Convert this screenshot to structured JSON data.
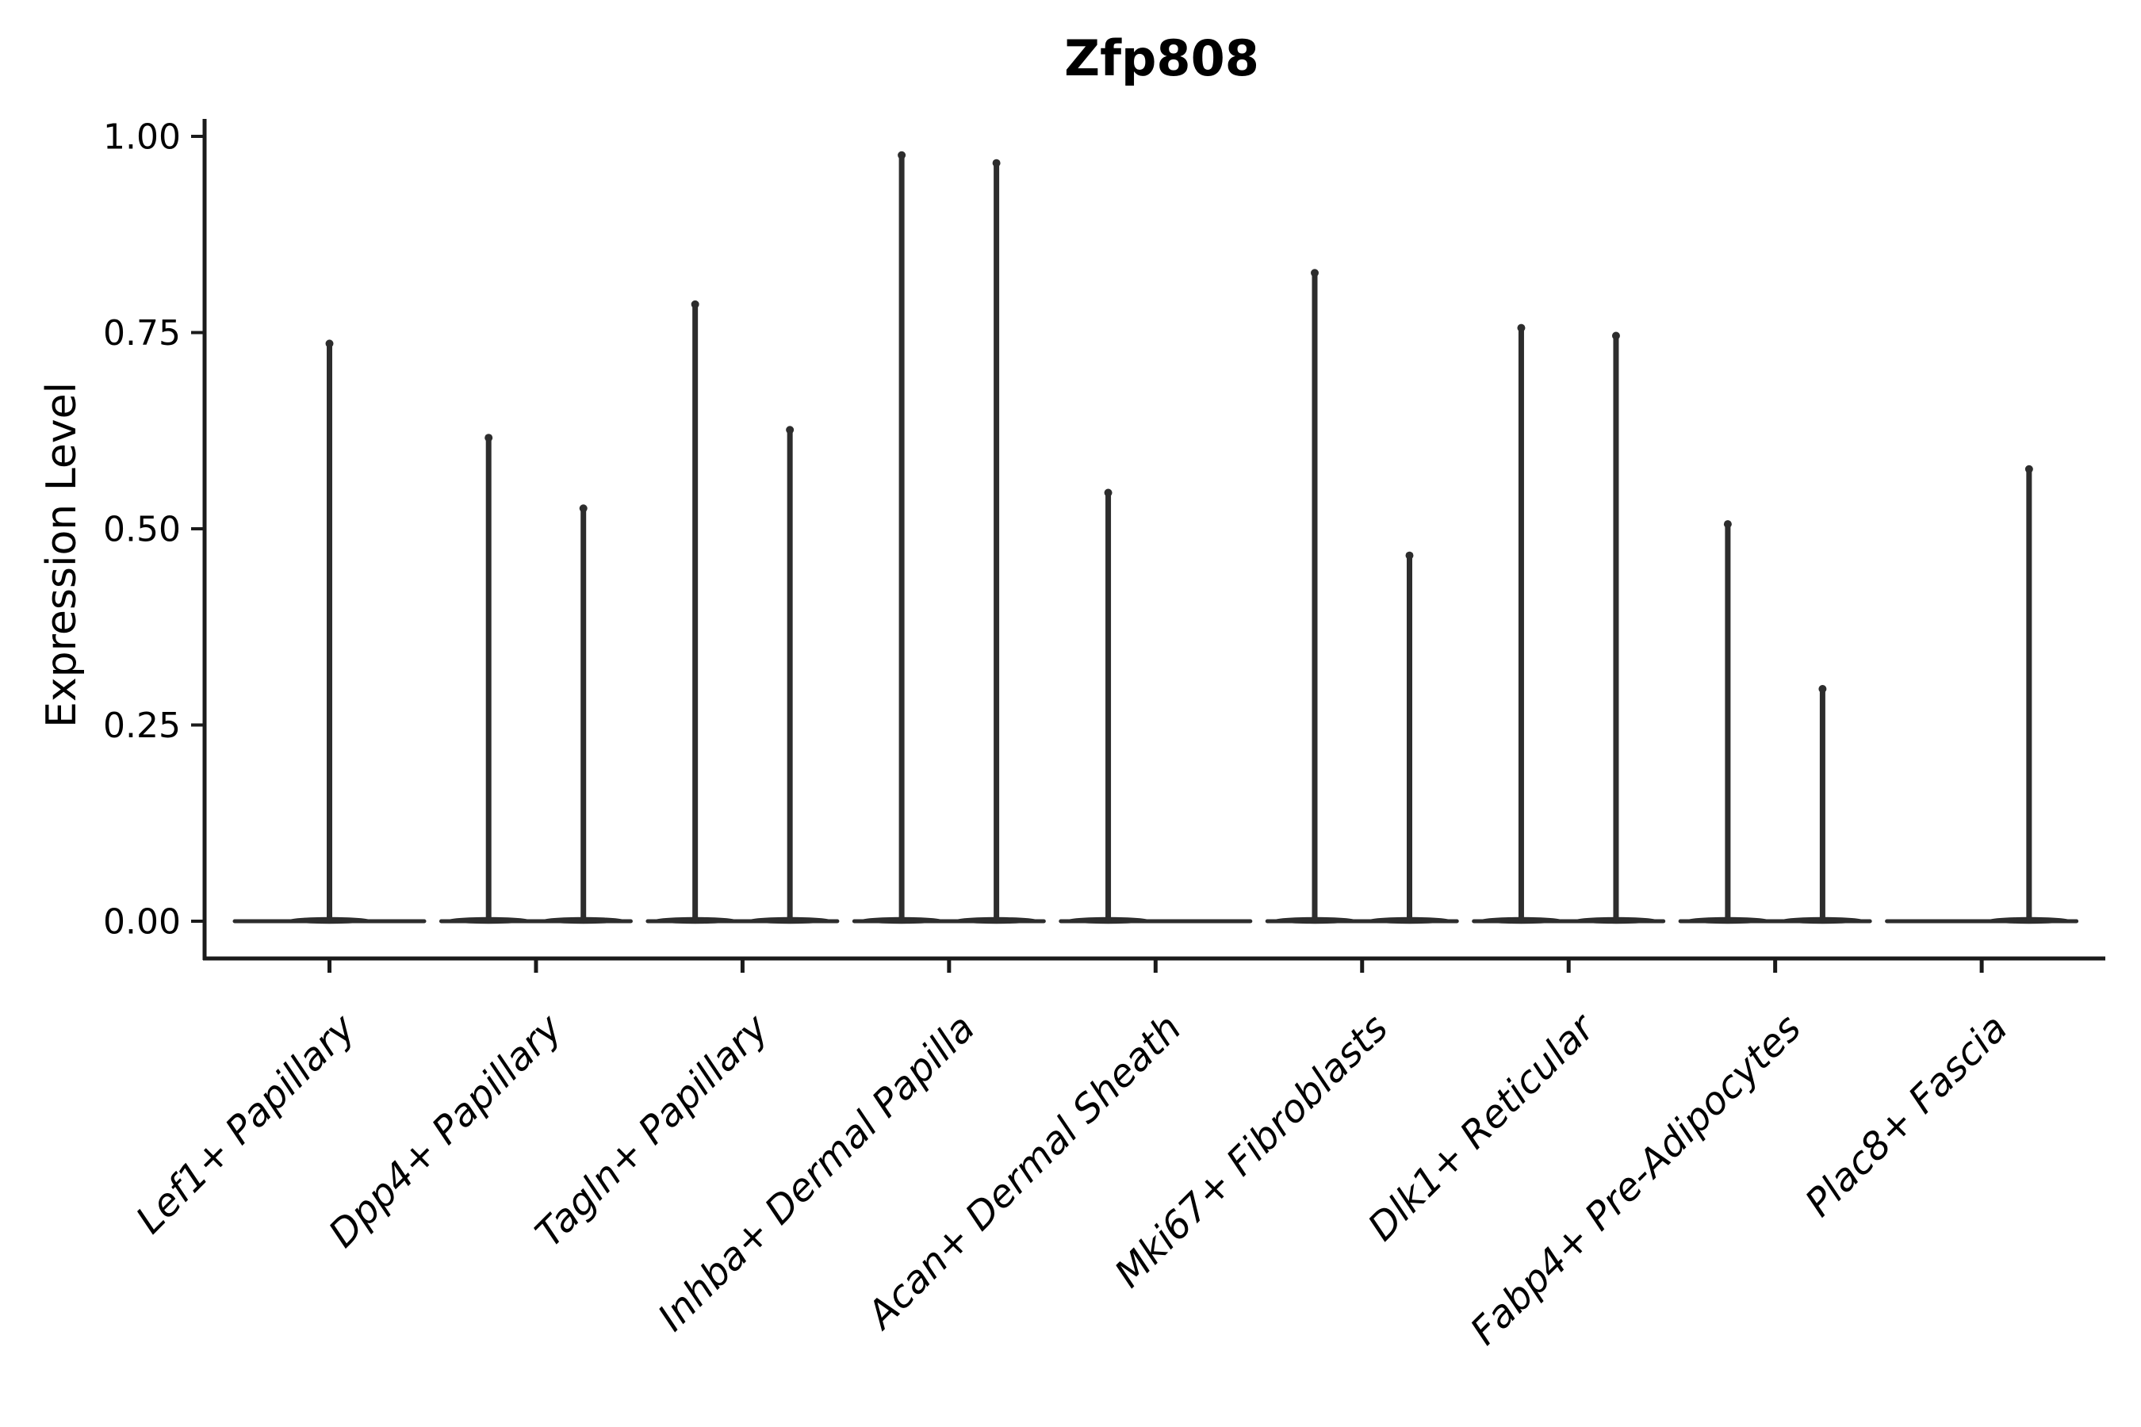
{
  "title": "Zfp808",
  "chart_data": {
    "type": "violin",
    "title": "Zfp808",
    "xlabel": "",
    "ylabel": "Expression Level",
    "ylim": [
      -0.05,
      1.02
    ],
    "grid": false,
    "legend": "none",
    "yticks": [
      {
        "v": 0.0,
        "label": "0.00"
      },
      {
        "v": 0.25,
        "label": "0.25"
      },
      {
        "v": 0.5,
        "label": "0.50"
      },
      {
        "v": 0.75,
        "label": "0.75"
      },
      {
        "v": 1.0,
        "label": "1.00"
      }
    ],
    "categories": [
      {
        "label": "Lef1+ Papillary",
        "spikes": [
          {
            "pos": "center",
            "max": 0.74
          }
        ]
      },
      {
        "label": "Dpp4+ Papillary",
        "spikes": [
          {
            "pos": "left",
            "max": 0.62
          },
          {
            "pos": "right",
            "max": 0.53
          }
        ]
      },
      {
        "label": "Tagln+ Papillary",
        "spikes": [
          {
            "pos": "left",
            "max": 0.79
          },
          {
            "pos": "right",
            "max": 0.63
          }
        ]
      },
      {
        "label": "Inhba+ Dermal Papilla",
        "spikes": [
          {
            "pos": "left",
            "max": 0.98
          },
          {
            "pos": "right",
            "max": 0.97
          }
        ]
      },
      {
        "label": "Acan+ Dermal Sheath",
        "spikes": [
          {
            "pos": "left",
            "max": 0.55
          }
        ]
      },
      {
        "label": "Mki67+ Fibroblasts",
        "spikes": [
          {
            "pos": "left",
            "max": 0.83
          },
          {
            "pos": "right",
            "max": 0.47
          }
        ]
      },
      {
        "label": "Dlk1+ Reticular",
        "spikes": [
          {
            "pos": "left",
            "max": 0.76
          },
          {
            "pos": "right",
            "max": 0.75
          }
        ]
      },
      {
        "label": "Fabp4+ Pre-Adipocytes",
        "spikes": [
          {
            "pos": "left",
            "max": 0.51
          },
          {
            "pos": "right",
            "max": 0.3
          }
        ]
      },
      {
        "label": "Plac8+ Fascia",
        "spikes": [
          {
            "pos": "right",
            "max": 0.58
          }
        ]
      }
    ],
    "violin_color": "#2d2d2d",
    "axis_color": "#1a1a1a",
    "text_color": "#000000",
    "background_color": "#ffffff"
  }
}
